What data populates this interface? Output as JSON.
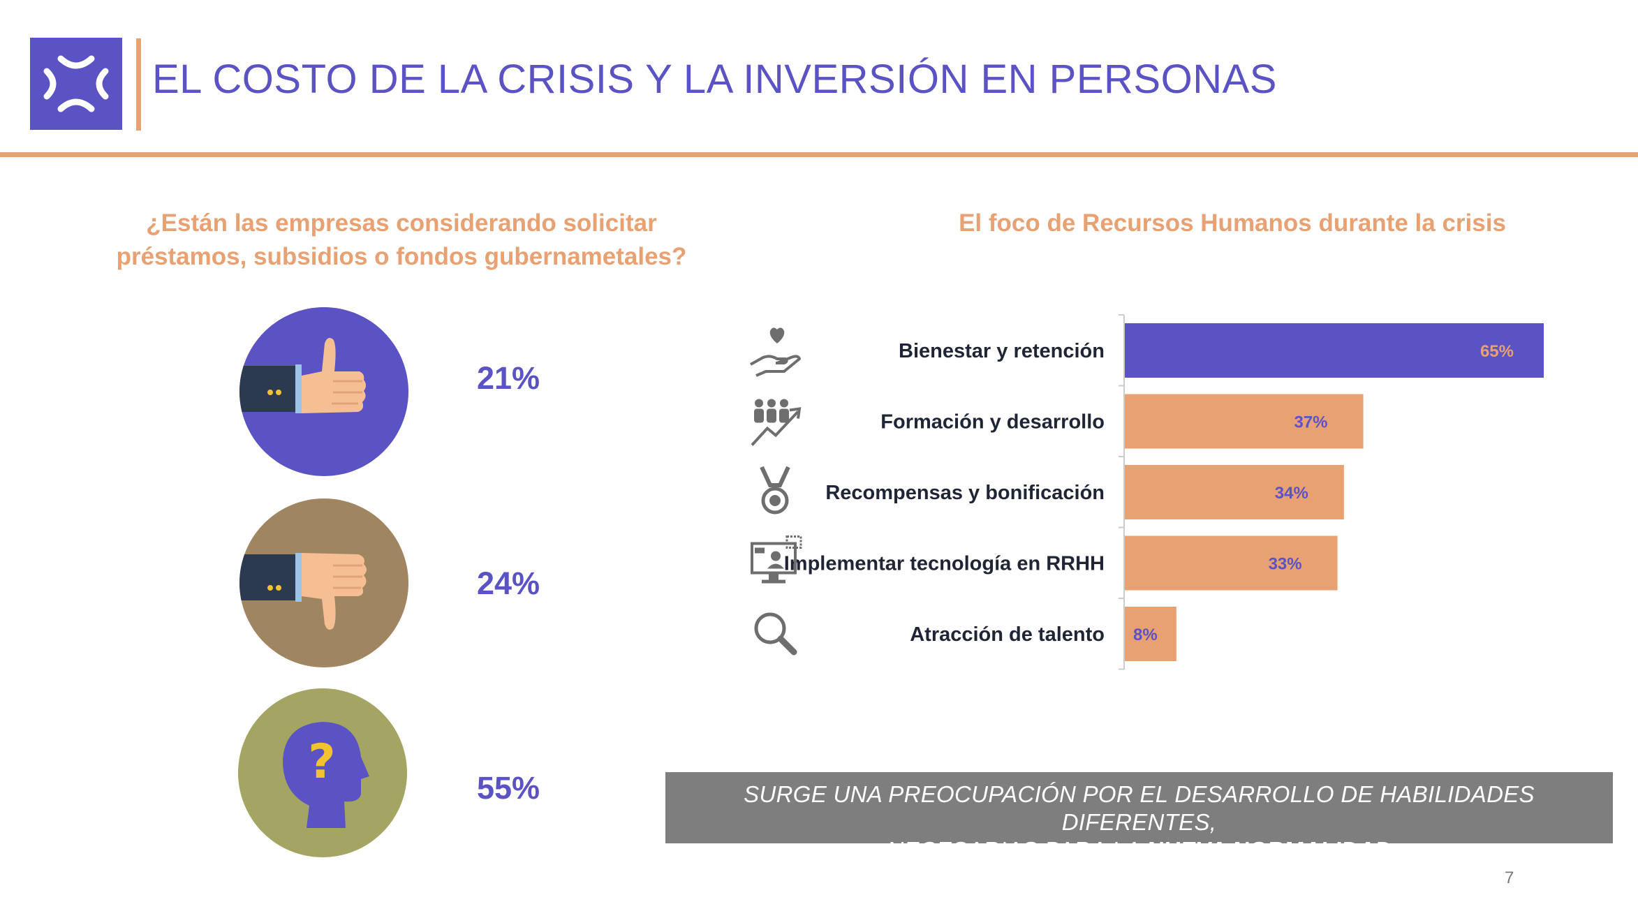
{
  "header": {
    "title": "EL COSTO DE LA CRISIS Y LA INVERSIÓN EN PERSONAS"
  },
  "left_panel": {
    "question_line1": "¿Están las empresas considerando solicitar",
    "question_line2": "préstamos,  subsidios o fondos gubernametales?",
    "answers": [
      {
        "icon": "thumbs-up-icon",
        "value": "21%",
        "color": "#5b52c4"
      },
      {
        "icon": "thumbs-down-icon",
        "value": "24%",
        "color": "#a08561"
      },
      {
        "icon": "question-head-icon",
        "value": "55%",
        "color": "#a5a563"
      }
    ]
  },
  "chart_data": {
    "type": "bar",
    "orientation": "horizontal",
    "title": "El foco de Recursos Humanos durante la crisis",
    "categories": [
      "Bienestar y retención",
      "Formación y desarrollo",
      "Recompensas y bonificación",
      "Implementar tecnología en RRHH",
      "Atracción de talento"
    ],
    "icons": [
      "heart-hand-icon",
      "people-growth-icon",
      "medal-icon",
      "monitor-tech-icon",
      "magnifier-icon"
    ],
    "values": [
      65,
      37,
      34,
      33,
      8
    ],
    "value_labels": [
      "65%",
      "37%",
      "34%",
      "33%",
      "8%"
    ],
    "xlim": [
      0,
      65
    ],
    "bar_colors": [
      "#5b52c4",
      "#e8a172",
      "#e8a172",
      "#e8a172",
      "#e8a172"
    ],
    "label_colors": [
      "#e8a172",
      "#5b52c4",
      "#5b52c4",
      "#5b52c4",
      "#5b52c4"
    ],
    "grid": false,
    "legend": "none"
  },
  "banner": {
    "line1": "SURGE UNA PREOCUPACIÓN POR EL DESARROLLO DE HABILIDADES DIFERENTES,",
    "line2_prefix": "NECESARIAS PARA LA ",
    "line2_bold": "NUEVA NORMALIDAD"
  },
  "page_number": "7",
  "colors": {
    "purple": "#5b52c4",
    "orange": "#e8a172",
    "gray": "#7e7e7e"
  }
}
